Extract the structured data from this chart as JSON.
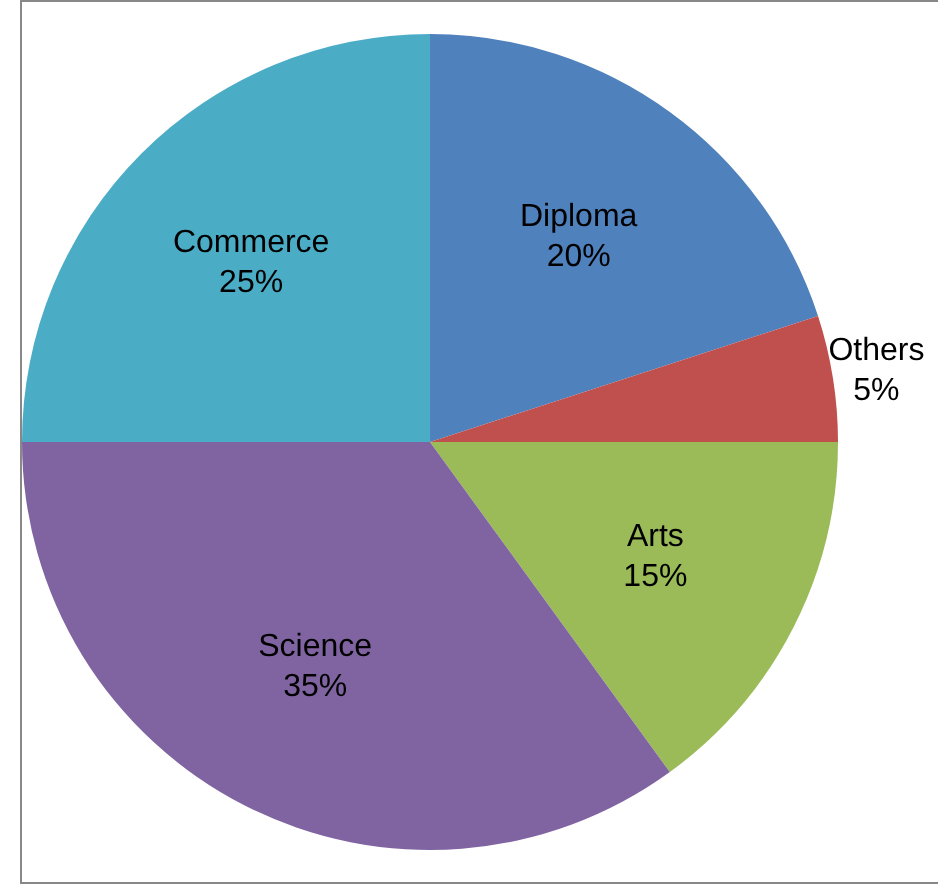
{
  "chart_data": {
    "type": "pie",
    "categories": [
      "Diploma",
      "Others",
      "Arts",
      "Science",
      "Commerce"
    ],
    "values": [
      20,
      5,
      15,
      35,
      25
    ],
    "value_labels": [
      "20%",
      "5%",
      "15%",
      "35%",
      "25%"
    ],
    "colors": [
      "#4f81bd",
      "#c0504d",
      "#9bbb59",
      "#8064a2",
      "#4bacc6"
    ],
    "legend": false
  }
}
